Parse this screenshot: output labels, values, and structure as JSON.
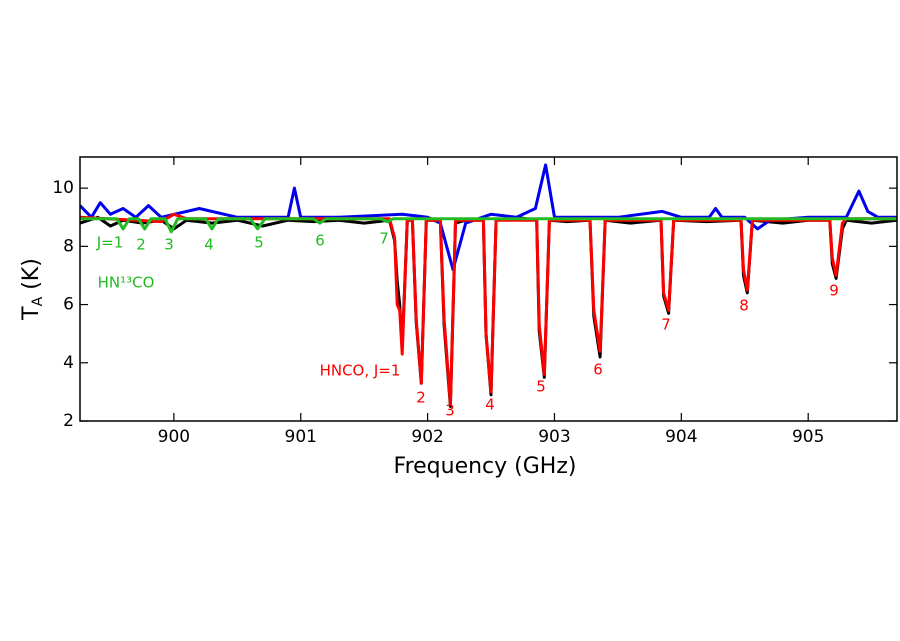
{
  "chart_data": {
    "type": "line",
    "xlabel": "Frequency (GHz)",
    "ylabel": [
      "T",
      "A",
      " (K)"
    ],
    "xlim": [
      899.26,
      905.7
    ],
    "ylim": [
      2,
      11.07
    ],
    "xticks": [
      900,
      901,
      902,
      903,
      904,
      905
    ],
    "yticks": [
      2,
      4,
      6,
      8,
      10
    ],
    "series": [
      {
        "color": "#000000",
        "x": [
          899.26,
          899.4,
          899.5,
          899.6,
          899.75,
          899.9,
          900.0,
          900.1,
          900.3,
          900.5,
          900.7,
          900.9,
          901.1,
          901.3,
          901.5,
          901.7,
          901.74,
          901.76,
          901.78,
          901.8,
          901.84,
          901.88,
          901.91,
          901.95,
          901.99,
          902.1,
          902.13,
          902.18,
          902.22,
          902.3,
          902.44,
          902.46,
          902.5,
          902.54,
          902.7,
          902.86,
          902.88,
          902.92,
          902.96,
          903.1,
          903.28,
          903.31,
          903.36,
          903.4,
          903.6,
          903.84,
          903.86,
          903.9,
          903.94,
          904.2,
          904.47,
          904.49,
          904.52,
          904.56,
          904.8,
          905.0,
          905.17,
          905.19,
          905.22,
          905.27,
          905.3,
          905.5,
          905.7
        ],
        "values": [
          8.8,
          9.0,
          8.7,
          8.9,
          8.8,
          8.9,
          8.6,
          8.9,
          8.8,
          8.9,
          8.7,
          8.9,
          8.85,
          8.9,
          8.8,
          8.9,
          8.2,
          6.8,
          6.0,
          4.5,
          8.9,
          8.9,
          5.4,
          3.3,
          8.9,
          8.9,
          5.3,
          2.5,
          8.8,
          8.9,
          8.9,
          5.0,
          2.9,
          8.9,
          9.0,
          8.9,
          5.1,
          3.5,
          8.9,
          8.85,
          8.9,
          5.6,
          4.2,
          8.9,
          8.8,
          8.9,
          6.3,
          5.7,
          8.9,
          8.85,
          8.9,
          7.0,
          6.4,
          8.9,
          8.8,
          8.9,
          8.9,
          7.4,
          6.9,
          8.6,
          8.9,
          8.8,
          8.9
        ]
      },
      {
        "color": "#0000ee",
        "x": [
          899.26,
          899.35,
          899.42,
          899.5,
          899.6,
          899.7,
          899.8,
          899.9,
          900.2,
          900.5,
          900.9,
          900.95,
          901.0,
          901.3,
          901.8,
          902.0,
          902.1,
          902.2,
          902.3,
          902.5,
          902.7,
          902.85,
          902.93,
          903.0,
          903.1,
          903.5,
          903.85,
          904.0,
          904.22,
          904.27,
          904.32,
          904.5,
          904.6,
          904.7,
          905.0,
          905.3,
          905.4,
          905.47,
          905.55,
          905.7
        ],
        "values": [
          9.4,
          9.0,
          9.5,
          9.1,
          9.3,
          9.0,
          9.4,
          9.0,
          9.3,
          9.0,
          9.0,
          10.0,
          9.0,
          9.0,
          9.1,
          9.0,
          8.8,
          7.2,
          8.8,
          9.1,
          9.0,
          9.3,
          10.8,
          9.0,
          9.0,
          9.0,
          9.2,
          9.0,
          9.0,
          9.3,
          9.0,
          9.0,
          8.6,
          8.9,
          9.0,
          9.0,
          9.9,
          9.2,
          9.0,
          9.0
        ]
      },
      {
        "color": "#ff0000",
        "x": [
          899.26,
          899.9,
          900.0,
          900.1,
          901.7,
          901.74,
          901.76,
          901.78,
          901.8,
          901.84,
          901.88,
          901.91,
          901.95,
          901.99,
          902.1,
          902.13,
          902.18,
          902.22,
          902.44,
          902.46,
          902.5,
          902.54,
          902.86,
          902.88,
          902.92,
          902.96,
          903.28,
          903.31,
          903.36,
          903.4,
          903.84,
          903.86,
          903.9,
          903.94,
          904.47,
          904.49,
          904.52,
          904.56,
          905.17,
          905.19,
          905.22,
          905.27,
          905.3,
          905.7
        ],
        "values": [
          9.0,
          8.85,
          9.1,
          8.95,
          8.95,
          8.3,
          6.0,
          5.8,
          4.3,
          8.9,
          8.9,
          5.5,
          3.3,
          8.9,
          8.9,
          5.5,
          2.6,
          8.9,
          8.9,
          5.0,
          3.0,
          8.9,
          8.9,
          5.3,
          3.6,
          8.9,
          8.9,
          5.8,
          4.4,
          8.9,
          8.9,
          6.4,
          5.8,
          8.9,
          8.9,
          7.2,
          6.5,
          8.9,
          8.9,
          7.6,
          7.0,
          8.8,
          8.95,
          8.95
        ]
      },
      {
        "color": "#22bb22",
        "x": [
          899.26,
          899.55,
          899.6,
          899.65,
          899.72,
          899.77,
          899.82,
          899.93,
          899.98,
          900.03,
          900.25,
          900.3,
          900.35,
          900.6,
          900.66,
          900.72,
          901.1,
          901.15,
          901.2,
          901.63,
          901.68,
          901.73,
          905.7
        ],
        "values": [
          8.95,
          8.95,
          8.6,
          8.95,
          8.95,
          8.6,
          8.95,
          8.95,
          8.5,
          8.95,
          8.95,
          8.6,
          8.95,
          8.95,
          8.6,
          8.95,
          8.95,
          8.8,
          8.95,
          8.95,
          8.85,
          8.95,
          8.95
        ]
      }
    ],
    "annotations": [
      {
        "text": "J=1",
        "color": "#22bb22"
      },
      {
        "text": "2",
        "color": "#22bb22"
      },
      {
        "text": "3",
        "color": "#22bb22"
      },
      {
        "text": "4",
        "color": "#22bb22"
      },
      {
        "text": "5",
        "color": "#22bb22"
      },
      {
        "text": "6",
        "color": "#22bb22"
      },
      {
        "text": "7",
        "color": "#22bb22"
      },
      {
        "text": "HN¹³CO",
        "color": "#22bb22"
      },
      {
        "text": "HNCO, J=1",
        "color": "#ff0000"
      },
      {
        "text": "2",
        "color": "#ff0000"
      },
      {
        "text": "3",
        "color": "#ff0000"
      },
      {
        "text": "4",
        "color": "#ff0000"
      },
      {
        "text": "5",
        "color": "#ff0000"
      },
      {
        "text": "6",
        "color": "#ff0000"
      },
      {
        "text": "7",
        "color": "#ff0000"
      },
      {
        "text": "8",
        "color": "#ff0000"
      },
      {
        "text": "9",
        "color": "#ff0000"
      }
    ]
  }
}
